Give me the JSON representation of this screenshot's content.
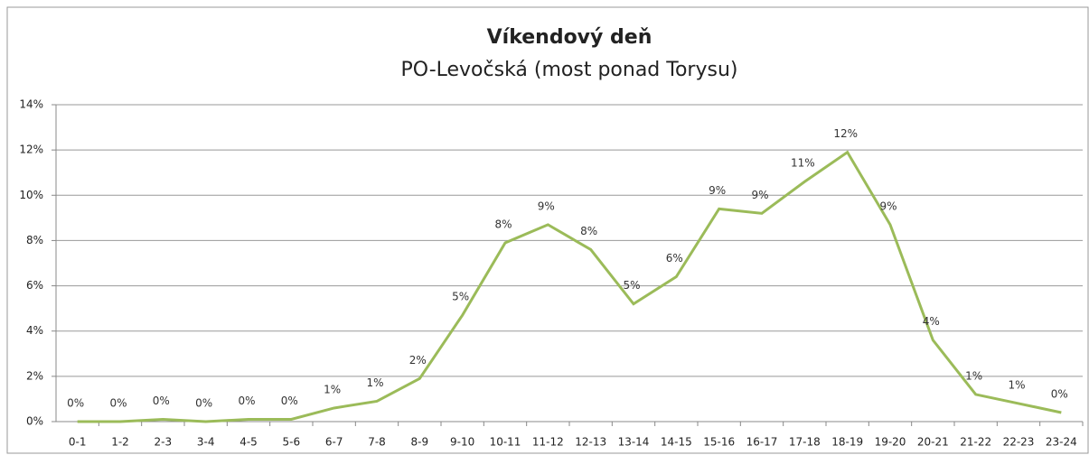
{
  "chart_data": {
    "type": "line",
    "title": "Víkendový deň",
    "subtitle": "PO-Levočská (most ponad Torysu)",
    "categories": [
      "0-1",
      "1-2",
      "2-3",
      "3-4",
      "4-5",
      "5-6",
      "6-7",
      "7-8",
      "8-9",
      "9-10",
      "10-11",
      "11-12",
      "12-13",
      "13-14",
      "14-15",
      "15-16",
      "16-17",
      "17-18",
      "18-19",
      "19-20",
      "20-21",
      "21-22",
      "22-23",
      "23-24"
    ],
    "series": [
      {
        "name": "Víkendový deň",
        "color": "#9bbb59",
        "values": [
          0,
          0,
          0.1,
          0,
          0.1,
          0.1,
          0.6,
          0.9,
          1.9,
          4.7,
          7.9,
          8.7,
          7.6,
          5.2,
          6.4,
          9.4,
          9.2,
          10.6,
          11.9,
          8.7,
          3.6,
          1.2,
          0.8,
          0.4
        ],
        "value_labels": [
          "0%",
          "0%",
          "0%",
          "0%",
          "0%",
          "0%",
          "1%",
          "1%",
          "2%",
          "5%",
          "8%",
          "9%",
          "8%",
          "5%",
          "6%",
          "9%",
          "9%",
          "11%",
          "12%",
          "9%",
          "4%",
          "1%",
          "1%",
          "0%"
        ]
      }
    ],
    "ylim": [
      0,
      14
    ],
    "yticks": [
      {
        "value": 0,
        "label": "0%"
      },
      {
        "value": 2,
        "label": "2%"
      },
      {
        "value": 4,
        "label": "4%"
      },
      {
        "value": 6,
        "label": "6%"
      },
      {
        "value": 8,
        "label": "8%"
      },
      {
        "value": 10,
        "label": "10%"
      },
      {
        "value": 12,
        "label": "12%"
      },
      {
        "value": 14,
        "label": "14%"
      }
    ],
    "grid": true
  }
}
